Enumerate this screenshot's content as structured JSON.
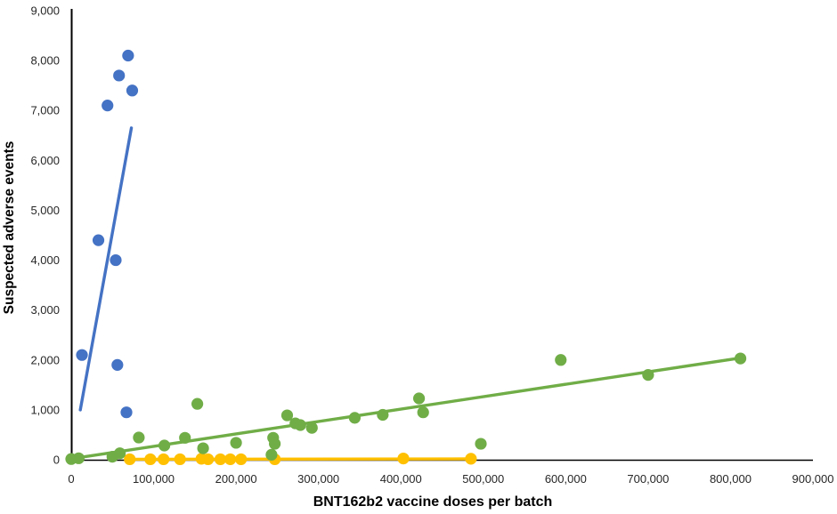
{
  "chart_data": {
    "type": "scatter",
    "title": "",
    "xlabel": "BNT162b2 vaccine doses per batch",
    "ylabel": "Suspected adverse events",
    "xlim": [
      0,
      900000
    ],
    "ylim": [
      0,
      9000
    ],
    "grid": false,
    "legend": "none",
    "axis_color": "#000000",
    "tick_label_color": "#262626",
    "x_ticks": [
      {
        "value": 0,
        "label": "0"
      },
      {
        "value": 100000,
        "label": "100,000"
      },
      {
        "value": 200000,
        "label": "200,000"
      },
      {
        "value": 300000,
        "label": "300,000"
      },
      {
        "value": 400000,
        "label": "400,000"
      },
      {
        "value": 500000,
        "label": "500,000"
      },
      {
        "value": 600000,
        "label": "600,000"
      },
      {
        "value": 700000,
        "label": "700,000"
      },
      {
        "value": 800000,
        "label": "800,000"
      },
      {
        "value": 900000,
        "label": "900,000"
      }
    ],
    "y_ticks": [
      {
        "value": 0,
        "label": "0"
      },
      {
        "value": 1000,
        "label": "1,000"
      },
      {
        "value": 2000,
        "label": "2,000"
      },
      {
        "value": 3000,
        "label": "3,000"
      },
      {
        "value": 4000,
        "label": "4,000"
      },
      {
        "value": 5000,
        "label": "5,000"
      },
      {
        "value": 6000,
        "label": "6,000"
      },
      {
        "value": 7000,
        "label": "7,000"
      },
      {
        "value": 8000,
        "label": "8,000"
      },
      {
        "value": 9000,
        "label": "9,000"
      }
    ],
    "series": [
      {
        "name": "yellow",
        "color": "#FFC000",
        "points": [
          [
            71000,
            10
          ],
          [
            96000,
            10
          ],
          [
            112000,
            10
          ],
          [
            132000,
            10
          ],
          [
            158000,
            20
          ],
          [
            166000,
            10
          ],
          [
            181000,
            10
          ],
          [
            193000,
            10
          ],
          [
            206000,
            10
          ],
          [
            247000,
            10
          ],
          [
            403000,
            25
          ],
          [
            485000,
            20
          ]
        ],
        "trendline": {
          "x1": 71000,
          "y1": 10,
          "x2": 485000,
          "y2": 18
        }
      },
      {
        "name": "green",
        "color": "#70AD47",
        "points": [
          [
            0,
            15
          ],
          [
            9000,
            30
          ],
          [
            50000,
            60
          ],
          [
            59000,
            130
          ],
          [
            82000,
            445
          ],
          [
            113000,
            285
          ],
          [
            138000,
            440
          ],
          [
            153000,
            1120
          ],
          [
            160000,
            230
          ],
          [
            200000,
            340
          ],
          [
            243000,
            100
          ],
          [
            245000,
            440
          ],
          [
            247000,
            320
          ],
          [
            262000,
            890
          ],
          [
            272000,
            730
          ],
          [
            278000,
            695
          ],
          [
            292000,
            640
          ],
          [
            344000,
            840
          ],
          [
            378000,
            900
          ],
          [
            422000,
            1230
          ],
          [
            427000,
            950
          ],
          [
            497000,
            320
          ],
          [
            594000,
            2000
          ],
          [
            700000,
            1700
          ],
          [
            812000,
            2030
          ]
        ],
        "trendline": {
          "x1": 2000,
          "y1": 25,
          "x2": 812000,
          "y2": 2040
        }
      },
      {
        "name": "blue",
        "color": "#4472C4",
        "points": [
          [
            13000,
            2100
          ],
          [
            33000,
            4400
          ],
          [
            44000,
            7100
          ],
          [
            54000,
            4000
          ],
          [
            56000,
            1900
          ],
          [
            58000,
            7700
          ],
          [
            67000,
            950
          ],
          [
            69000,
            8100
          ],
          [
            74000,
            7400
          ]
        ],
        "trendline": {
          "x1": 11000,
          "y1": 1000,
          "x2": 73000,
          "y2": 6650
        }
      }
    ]
  }
}
